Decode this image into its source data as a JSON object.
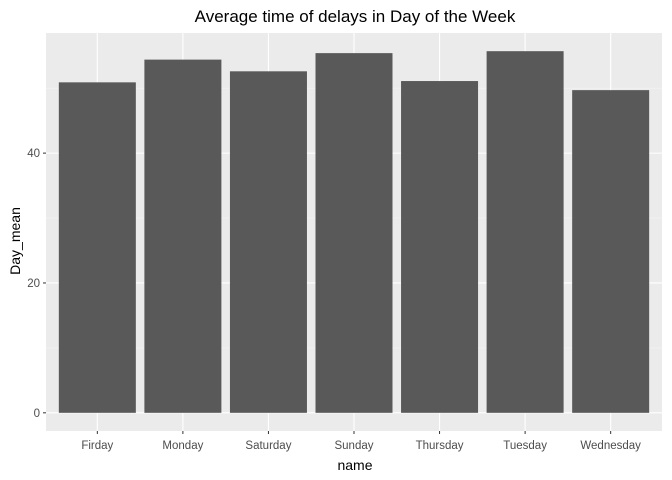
{
  "chart_data": {
    "type": "bar",
    "title": "Average time of delays in Day of the Week",
    "xlabel": "name",
    "ylabel": "Day_mean",
    "categories": [
      "Firday",
      "Monday",
      "Saturday",
      "Sunday",
      "Thursday",
      "Tuesday",
      "Wednesday"
    ],
    "values": [
      50.9,
      54.4,
      52.6,
      55.4,
      51.1,
      55.7,
      49.7
    ],
    "yticks": [
      0,
      20,
      40
    ],
    "ylim": [
      -2.8,
      58.5
    ],
    "grid": true,
    "colors": {
      "panel": "#ebebeb",
      "grid_major": "#ffffff",
      "grid_minor": "#f5f5f5",
      "bar": "#595959",
      "tick": "#333333"
    }
  }
}
